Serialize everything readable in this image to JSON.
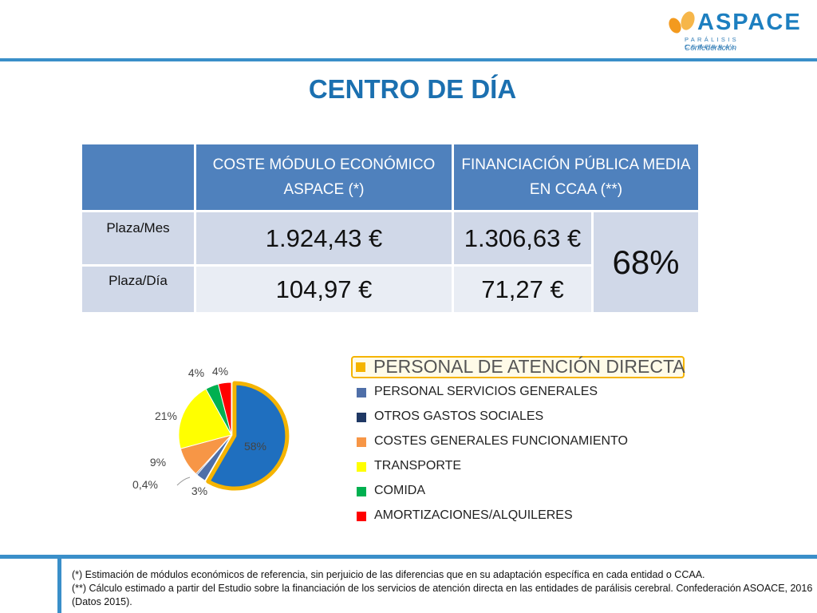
{
  "logo": {
    "name": "ASPACE",
    "subtitle": "PARÁLISIS CEREBRAL",
    "tagline": "Confederación"
  },
  "page": {
    "title": "CENTRO DE DÍA"
  },
  "table": {
    "headers": [
      "",
      "COSTE MÓDULO ECONÓMICO ASPACE (*)",
      "FINANCIACIÓN PÚBLICA MEDIA EN CCAA (**)"
    ],
    "rows": [
      {
        "label": "Plaza/Mes",
        "coste": "1.924,43 €",
        "financiacion": "1.306,63 €"
      },
      {
        "label": "Plaza/Día",
        "coste": "104,97 €",
        "financiacion": "71,27 €"
      }
    ],
    "percentage": "68%"
  },
  "chart_data": {
    "type": "pie",
    "categories": [
      "PERSONAL DE ATENCIÓN DIRECTA",
      "PERSONAL SERVICIOS GENERALES",
      "OTROS GASTOS SOCIALES",
      "COSTES GENERALES FUNCIONAMIENTO",
      "TRANSPORTE",
      "COMIDA",
      "AMORTIZACIONES/ALQUILERES"
    ],
    "values": [
      58,
      3,
      0.4,
      9,
      21,
      4,
      4
    ],
    "data_labels": [
      "58%",
      "3%",
      "0,4%",
      "9%",
      "21%",
      "4%",
      "4%"
    ],
    "colors": [
      "#1f6fbf",
      "#4f6fa8",
      "#1f3864",
      "#f79646",
      "#ffff00",
      "#00b050",
      "#ff0000"
    ],
    "highlight": {
      "category": "PERSONAL DE ATENCIÓN DIRECTA",
      "color": "#f5b400"
    },
    "legend_position": "right"
  },
  "footnotes": [
    "(*) Estimación de módulos económicos de referencia, sin perjuicio de las diferencias que en su adaptación específica en cada entidad o CCAA.",
    "(**) Cálculo estimado a partir del Estudio sobre la financiación de los servicios de atención directa en las entidades de parálisis cerebral. Confederación ASOACE, 2016 (Datos 2015)."
  ]
}
